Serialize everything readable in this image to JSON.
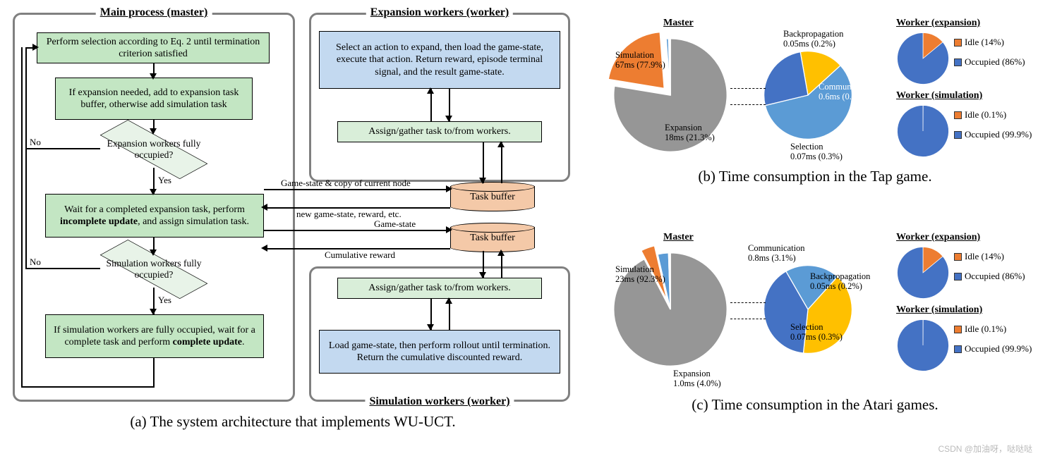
{
  "flowchart": {
    "panels": {
      "main": "Main process (master)",
      "exp": "Expansion workers (worker)",
      "sim": "Simulation workers (worker)"
    },
    "boxes": {
      "b1": "Perform selection according to Eq. 2 until termination criterion satisfied",
      "b2": "If expansion needed, add to expansion task buffer, otherwise add simulation task",
      "d1": "Expansion workers fully occupied?",
      "b3_a": "Wait for a completed expansion task, perform ",
      "b3_b": "incomplete update",
      "b3_c": ", and assign simulation task.",
      "d2": "Simulation workers fully occupied?",
      "b4_a": "If simulation workers are fully occupied, wait for a complete task and perform ",
      "b4_b": "complete update",
      "b4_c": ".",
      "exp_blue": "Select an action to expand, then load the game-state, execute that action. Return reward, episode terminal signal, and the result game-state.",
      "exp_green": "Assign/gather task to/from workers.",
      "sim_green": "Assign/gather task to/from workers.",
      "sim_blue": "Load game-state, then perform rollout until termination. Return the cumulative discounted reward.",
      "buf1": "Task buffer",
      "buf2": "Task buffer"
    },
    "labels": {
      "no": "No",
      "yes": "Yes",
      "l1": "Game-state & copy of current node",
      "l2": "new game-state, reward, etc.",
      "l3": "Game-state",
      "l4": "Cumulative reward"
    },
    "caption": "(a)  The system architecture that implements WU-UCT."
  },
  "charts": {
    "colors": {
      "sim": "#969696",
      "exp": "#ed7d31",
      "comm": "#5b9bd5",
      "back": "#ffc000",
      "sel": "#4472c4",
      "idle": "#ed7d31",
      "occ": "#4472c4",
      "green": "#70ad47"
    },
    "b": {
      "titles": {
        "master": "Master",
        "we": "Worker (expansion)",
        "ws": "Worker (simulation)"
      },
      "master": {
        "slices": [
          {
            "label": "Simulation",
            "ms": "67ms",
            "pct": 77.9,
            "color": "sim"
          },
          {
            "label": "Expansion",
            "ms": "18ms",
            "pct": 21.3,
            "color": "exp"
          },
          {
            "label": "Communication",
            "ms": "0.6ms",
            "pct": 0.7,
            "color": "comm"
          },
          {
            "label": "Backpropagation",
            "ms": "0.05ms",
            "pct": 0.2,
            "color": "back"
          },
          {
            "label": "Selection",
            "ms": "0.07ms",
            "pct": 0.3,
            "color": "green"
          }
        ]
      },
      "zoom": [
        {
          "label": "Backpropagation",
          "txt": "0.05ms (0.2%)",
          "color": "back",
          "pct": 16
        },
        {
          "label": "Communication",
          "txt": "0.6ms (0.7%)",
          "color": "comm",
          "pct": 58
        },
        {
          "label": "Selection",
          "txt": "0.07ms (0.3%)",
          "color": "sel",
          "pct": 26
        }
      ],
      "we": [
        {
          "label": "Idle (14%)",
          "pct": 14,
          "color": "idle"
        },
        {
          "label": "Occupied (86%)",
          "pct": 86,
          "color": "occ"
        }
      ],
      "ws": [
        {
          "label": "Idle (0.1%)",
          "pct": 0.1,
          "color": "idle"
        },
        {
          "label": "Occupied (99.9%)",
          "pct": 99.9,
          "color": "occ"
        }
      ],
      "caption": "(b)  Time consumption in the Tap game."
    },
    "c": {
      "titles": {
        "master": "Master",
        "we": "Worker (expansion)",
        "ws": "Worker (simulation)"
      },
      "master": {
        "slices": [
          {
            "label": "Simulation",
            "ms": "23ms",
            "pct": 92.3,
            "color": "sim"
          },
          {
            "label": "Expansion",
            "ms": "1.0ms",
            "pct": 4.0,
            "color": "exp"
          },
          {
            "label": "Communication",
            "ms": "0.8ms",
            "pct": 3.1,
            "color": "comm"
          },
          {
            "label": "Backpropagation",
            "ms": "0.05ms",
            "pct": 0.2,
            "color": "back"
          },
          {
            "label": "Selection",
            "ms": "0.07ms",
            "pct": 0.3,
            "color": "sel"
          }
        ]
      },
      "zoom": [
        {
          "label": "Communication",
          "txt": "0.8ms (3.1%)",
          "color": "comm",
          "pct": 20
        },
        {
          "label": "Backpropagation",
          "txt": "0.05ms (0.2%)",
          "color": "back",
          "pct": 40
        },
        {
          "label": "Selection",
          "txt": "0.07ms (0.3%)",
          "color": "sel",
          "pct": 40
        }
      ],
      "we": [
        {
          "label": "Idle (14%)",
          "pct": 14,
          "color": "idle"
        },
        {
          "label": "Occupied (86%)",
          "pct": 86,
          "color": "occ"
        }
      ],
      "ws": [
        {
          "label": "Idle (0.1%)",
          "pct": 0.1,
          "color": "idle"
        },
        {
          "label": "Occupied (99.9%)",
          "pct": 99.9,
          "color": "occ"
        }
      ],
      "caption": "(c)  Time consumption in the Atari games."
    }
  },
  "watermark": "CSDN @加油呀，哒哒哒"
}
